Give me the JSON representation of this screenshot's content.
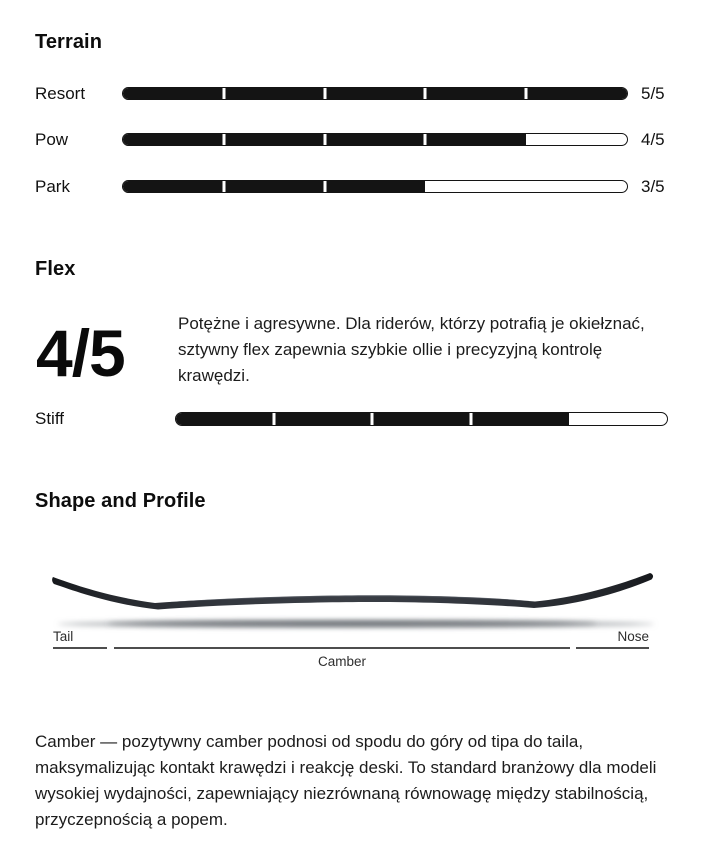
{
  "colors": {
    "bar_fill": "#141414",
    "bar_outline": "#141414",
    "background": "#ffffff",
    "board_dark": "#1b1e23",
    "board_mid": "#383c43"
  },
  "terrain": {
    "title": "Terrain",
    "rows": [
      {
        "label": "Resort",
        "value": 5,
        "max": 5,
        "display": "5/5"
      },
      {
        "label": "Pow",
        "value": 4,
        "max": 5,
        "display": "4/5"
      },
      {
        "label": "Park",
        "value": 3,
        "max": 5,
        "display": "3/5"
      }
    ]
  },
  "flex": {
    "title": "Flex",
    "rating_display": "4/5",
    "rating": {
      "value": 4,
      "max": 5
    },
    "description_lines": [
      "Potężne i agresywne. Dla riderów, którzy potrafią je okiełznać,",
      "sztywny flex zapewnia szybkie ollie i precyzyjną kontrolę",
      "krawędzi."
    ],
    "bar_label": "Stiff"
  },
  "shape_profile": {
    "title": "Shape and Profile",
    "tail_label": "Tail",
    "nose_label": "Nose",
    "camber_label": "Camber",
    "profile_type": "Camber",
    "description_lines": [
      "Camber — pozytywny camber podnosi od spodu do góry od tipa do taila,",
      "maksymalizując kontakt krawędzi i reakcję deski. To standard branżowy dla modeli",
      "wysokiej wydajności, zapewniający niezrównaną równowagę między stabilnością,",
      "przyczepnością a popem."
    ]
  }
}
